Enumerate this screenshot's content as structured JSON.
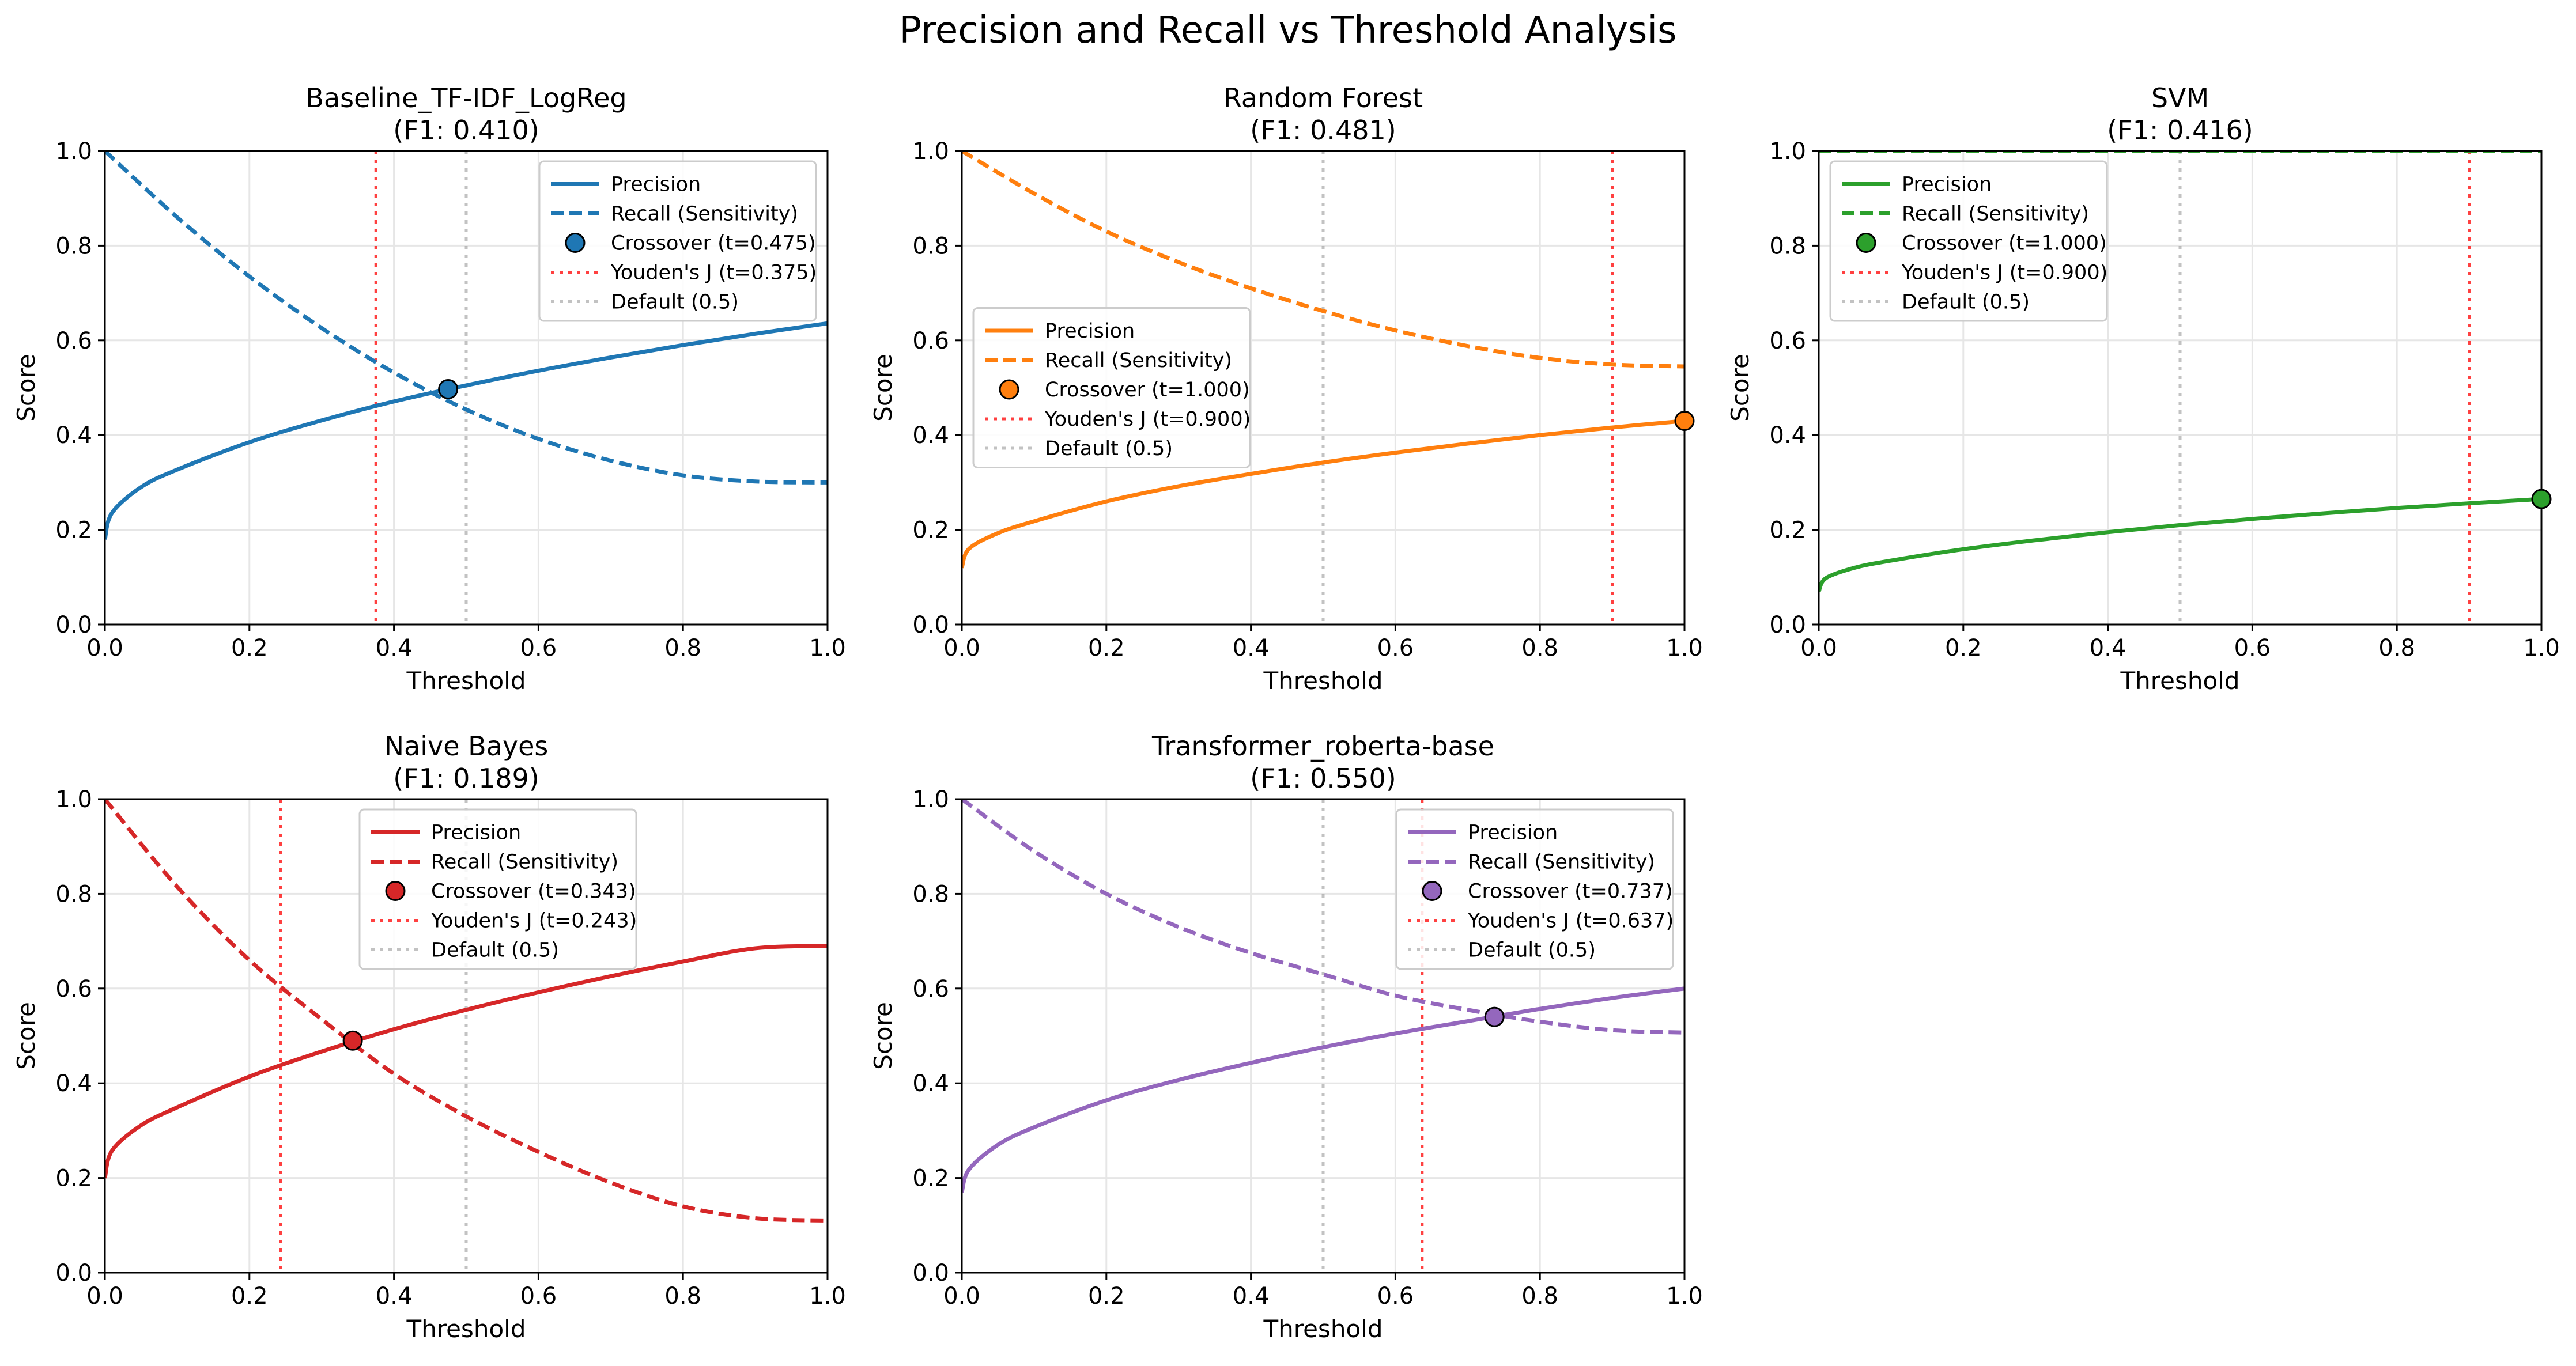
{
  "figure": {
    "title": "Precision and Recall vs Threshold Analysis"
  },
  "chart_data": [
    {
      "type": "line",
      "title": "Baseline_TF-IDF_LogReg",
      "subtitle": "(F1: 0.410)",
      "xlabel": "Threshold",
      "ylabel": "Score",
      "xlim": [
        0,
        1
      ],
      "ylim": [
        0,
        1
      ],
      "x_ticks": [
        "0.0",
        "0.2",
        "0.4",
        "0.6",
        "0.8",
        "1.0"
      ],
      "y_ticks": [
        "0.0",
        "0.2",
        "0.4",
        "0.6",
        "0.8",
        "1.0"
      ],
      "grid": true,
      "legend_position": "upper-right",
      "color": "#1f77b4",
      "series": [
        {
          "name": "Precision",
          "style": "solid",
          "x": [
            0.0,
            0.01,
            0.05,
            0.1,
            0.2,
            0.3,
            0.4,
            0.5,
            0.6,
            0.7,
            0.8,
            0.9,
            1.0
          ],
          "y": [
            0.18,
            0.236,
            0.29,
            0.327,
            0.385,
            0.431,
            0.471,
            0.505,
            0.536,
            0.564,
            0.59,
            0.614,
            0.636
          ]
        },
        {
          "name": "Recall (Sensitivity)",
          "style": "dashed",
          "x": [
            0.0,
            0.1,
            0.2,
            0.3,
            0.4,
            0.5,
            0.6,
            0.7,
            0.8,
            0.9,
            1.0
          ],
          "y": [
            1.0,
            0.86,
            0.735,
            0.626,
            0.532,
            0.454,
            0.392,
            0.346,
            0.315,
            0.302,
            0.3
          ]
        }
      ],
      "markers": [
        {
          "name": "Crossover (t=0.475)",
          "x": 0.475,
          "y": 0.497
        }
      ],
      "vlines": [
        {
          "name": "Youden's J (t=0.375)",
          "x": 0.375,
          "color": "#ff0000",
          "style": "dotted"
        },
        {
          "name": "Default (0.5)",
          "x": 0.5,
          "color": "#999999",
          "style": "dotted"
        }
      ]
    },
    {
      "type": "line",
      "title": "Random Forest",
      "subtitle": "(F1: 0.481)",
      "xlabel": "Threshold",
      "ylabel": "Score",
      "xlim": [
        0,
        1
      ],
      "ylim": [
        0,
        1
      ],
      "x_ticks": [
        "0.0",
        "0.2",
        "0.4",
        "0.6",
        "0.8",
        "1.0"
      ],
      "y_ticks": [
        "0.0",
        "0.2",
        "0.4",
        "0.6",
        "0.8",
        "1.0"
      ],
      "grid": true,
      "legend_position": "center-left",
      "color": "#ff7f0e",
      "series": [
        {
          "name": "Precision",
          "style": "solid",
          "x": [
            0.0,
            0.01,
            0.05,
            0.1,
            0.2,
            0.3,
            0.4,
            0.5,
            0.6,
            0.7,
            0.8,
            0.9,
            1.0
          ],
          "y": [
            0.12,
            0.16,
            0.193,
            0.218,
            0.26,
            0.292,
            0.318,
            0.342,
            0.363,
            0.382,
            0.4,
            0.416,
            0.43
          ]
        },
        {
          "name": "Recall (Sensitivity)",
          "style": "dashed",
          "x": [
            0.0,
            0.1,
            0.2,
            0.3,
            0.4,
            0.5,
            0.6,
            0.7,
            0.8,
            0.9,
            1.0
          ],
          "y": [
            1.0,
            0.91,
            0.83,
            0.765,
            0.71,
            0.662,
            0.621,
            0.588,
            0.563,
            0.549,
            0.545
          ]
        }
      ],
      "markers": [
        {
          "name": "Crossover (t=1.000)",
          "x": 1.0,
          "y": 0.43
        }
      ],
      "vlines": [
        {
          "name": "Youden's J (t=0.900)",
          "x": 0.9,
          "color": "#ff0000",
          "style": "dotted"
        },
        {
          "name": "Default (0.5)",
          "x": 0.5,
          "color": "#999999",
          "style": "dotted"
        }
      ]
    },
    {
      "type": "line",
      "title": "SVM",
      "subtitle": "(F1: 0.416)",
      "xlabel": "Threshold",
      "ylabel": "Score",
      "xlim": [
        0,
        1
      ],
      "ylim": [
        0,
        1
      ],
      "x_ticks": [
        "0.0",
        "0.2",
        "0.4",
        "0.6",
        "0.8",
        "1.0"
      ],
      "y_ticks": [
        "0.0",
        "0.2",
        "0.4",
        "0.6",
        "0.8",
        "1.0"
      ],
      "grid": true,
      "legend_position": "upper-left",
      "color": "#2ca02c",
      "series": [
        {
          "name": "Precision",
          "style": "solid",
          "x": [
            0.0,
            0.01,
            0.05,
            0.1,
            0.2,
            0.3,
            0.4,
            0.5,
            0.6,
            0.7,
            0.8,
            0.9,
            1.0
          ],
          "y": [
            0.07,
            0.098,
            0.12,
            0.135,
            0.159,
            0.178,
            0.195,
            0.21,
            0.223,
            0.235,
            0.246,
            0.256,
            0.265
          ]
        },
        {
          "name": "Recall (Sensitivity)",
          "style": "dashed",
          "x": [
            0.0,
            1.0
          ],
          "y": [
            1.0,
            1.0
          ]
        }
      ],
      "markers": [
        {
          "name": "Crossover (t=1.000)",
          "x": 1.0,
          "y": 0.265
        }
      ],
      "vlines": [
        {
          "name": "Youden's J (t=0.900)",
          "x": 0.9,
          "color": "#ff0000",
          "style": "dotted"
        },
        {
          "name": "Default (0.5)",
          "x": 0.5,
          "color": "#999999",
          "style": "dotted"
        }
      ]
    },
    {
      "type": "line",
      "title": "Naive Bayes",
      "subtitle": "(F1: 0.189)",
      "xlabel": "Threshold",
      "ylabel": "Score",
      "xlim": [
        0,
        1
      ],
      "ylim": [
        0,
        1
      ],
      "x_ticks": [
        "0.0",
        "0.2",
        "0.4",
        "0.6",
        "0.8",
        "1.0"
      ],
      "y_ticks": [
        "0.0",
        "0.2",
        "0.4",
        "0.6",
        "0.8",
        "1.0"
      ],
      "grid": true,
      "legend_position": "upper-center",
      "color": "#d62728",
      "series": [
        {
          "name": "Precision",
          "style": "solid",
          "x": [
            0.0,
            0.01,
            0.05,
            0.1,
            0.2,
            0.3,
            0.4,
            0.5,
            0.6,
            0.7,
            0.8,
            0.9,
            1.0
          ],
          "y": [
            0.2,
            0.258,
            0.311,
            0.349,
            0.414,
            0.467,
            0.514,
            0.555,
            0.592,
            0.626,
            0.657,
            0.685,
            0.69
          ]
        },
        {
          "name": "Recall (Sensitivity)",
          "style": "dashed",
          "x": [
            0.0,
            0.1,
            0.2,
            0.3,
            0.4,
            0.5,
            0.6,
            0.7,
            0.8,
            0.9,
            1.0
          ],
          "y": [
            1.0,
            0.815,
            0.66,
            0.535,
            0.42,
            0.33,
            0.255,
            0.19,
            0.14,
            0.115,
            0.11
          ]
        }
      ],
      "markers": [
        {
          "name": "Crossover (t=0.343)",
          "x": 0.343,
          "y": 0.49
        }
      ],
      "vlines": [
        {
          "name": "Youden's J (t=0.243)",
          "x": 0.243,
          "color": "#ff0000",
          "style": "dotted"
        },
        {
          "name": "Default (0.5)",
          "x": 0.5,
          "color": "#999999",
          "style": "dotted"
        }
      ]
    },
    {
      "type": "line",
      "title": "Transformer_roberta-base",
      "subtitle": "(F1: 0.550)",
      "xlabel": "Threshold",
      "ylabel": "Score",
      "xlim": [
        0,
        1
      ],
      "ylim": [
        0,
        1
      ],
      "x_ticks": [
        "0.0",
        "0.2",
        "0.4",
        "0.6",
        "0.8",
        "1.0"
      ],
      "y_ticks": [
        "0.0",
        "0.2",
        "0.4",
        "0.6",
        "0.8",
        "1.0"
      ],
      "grid": true,
      "legend_position": "upper-right",
      "color": "#9467bd",
      "series": [
        {
          "name": "Precision",
          "style": "solid",
          "x": [
            0.0,
            0.01,
            0.05,
            0.1,
            0.2,
            0.3,
            0.4,
            0.5,
            0.6,
            0.7,
            0.8,
            0.9,
            1.0
          ],
          "y": [
            0.17,
            0.218,
            0.27,
            0.307,
            0.364,
            0.407,
            0.443,
            0.476,
            0.505,
            0.531,
            0.557,
            0.58,
            0.6
          ]
        },
        {
          "name": "Recall (Sensitivity)",
          "style": "dashed",
          "x": [
            0.0,
            0.1,
            0.2,
            0.3,
            0.4,
            0.5,
            0.6,
            0.7,
            0.8,
            0.9,
            1.0
          ],
          "y": [
            1.0,
            0.89,
            0.8,
            0.73,
            0.675,
            0.63,
            0.585,
            0.555,
            0.53,
            0.512,
            0.507
          ]
        }
      ],
      "markers": [
        {
          "name": "Crossover (t=0.737)",
          "x": 0.737,
          "y": 0.54
        }
      ],
      "vlines": [
        {
          "name": "Youden's J (t=0.637)",
          "x": 0.637,
          "color": "#ff0000",
          "style": "dotted"
        },
        {
          "name": "Default (0.5)",
          "x": 0.5,
          "color": "#999999",
          "style": "dotted"
        }
      ]
    }
  ]
}
